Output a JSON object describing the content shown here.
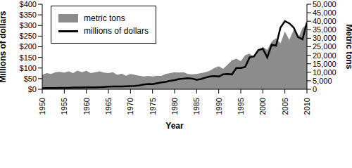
{
  "chart_data": {
    "type": "area_line",
    "x_label": "Year",
    "y_label": "Millions of dollars",
    "y2_label": "Metric tons",
    "x": [
      1950,
      1951,
      1952,
      1953,
      1954,
      1955,
      1956,
      1957,
      1958,
      1959,
      1960,
      1961,
      1962,
      1963,
      1964,
      1965,
      1966,
      1967,
      1968,
      1969,
      1970,
      1971,
      1972,
      1973,
      1974,
      1975,
      1976,
      1977,
      1978,
      1979,
      1980,
      1981,
      1982,
      1983,
      1984,
      1985,
      1986,
      1987,
      1988,
      1989,
      1990,
      1991,
      1992,
      1993,
      1994,
      1995,
      1996,
      1997,
      1998,
      1999,
      2000,
      2001,
      2002,
      2003,
      2004,
      2005,
      2006,
      2007,
      2008,
      2009,
      2010
    ],
    "series": [
      {
        "name": "metric tons",
        "type": "area",
        "axis": "y2",
        "color": "#8c8c8c",
        "values": [
          8500,
          9500,
          9000,
          10000,
          10200,
          9800,
          10500,
          9500,
          11000,
          10000,
          10800,
          9500,
          10000,
          10500,
          9800,
          9500,
          10000,
          8500,
          9200,
          8000,
          9000,
          8500,
          8000,
          7500,
          7800,
          7500,
          8000,
          7800,
          9000,
          9500,
          10000,
          9800,
          10000,
          9000,
          8800,
          9000,
          9500,
          10000,
          11000,
          12500,
          13500,
          12000,
          14500,
          17000,
          18000,
          16500,
          20000,
          21000,
          19000,
          23000,
          25000,
          23000,
          28000,
          30000,
          27000,
          34000,
          29000,
          35000,
          30000,
          36000,
          38500
        ]
      },
      {
        "name": "millions of dollars",
        "type": "line",
        "axis": "y",
        "color": "#000000",
        "values": [
          5,
          6,
          6,
          6,
          7,
          7,
          7,
          8,
          8,
          8,
          9,
          9,
          9,
          10,
          11,
          12,
          13,
          13,
          13,
          14,
          15,
          16,
          18,
          22,
          25,
          24,
          28,
          32,
          35,
          40,
          43,
          48,
          50,
          52,
          50,
          45,
          48,
          55,
          60,
          62,
          60,
          70,
          72,
          70,
          100,
          100,
          105,
          150,
          155,
          185,
          190,
          150,
          210,
          205,
          290,
          320,
          310,
          290,
          245,
          235,
          315
        ]
      }
    ],
    "xlim": [
      1950,
      2010
    ],
    "xticks": [
      1950,
      1955,
      1960,
      1965,
      1970,
      1975,
      1980,
      1985,
      1990,
      1995,
      2000,
      2005,
      2010
    ],
    "ylim": [
      0,
      400
    ],
    "yticks": [
      {
        "value": 0,
        "label": "$0"
      },
      {
        "value": 50,
        "label": "$50"
      },
      {
        "value": 100,
        "label": "$100"
      },
      {
        "value": 150,
        "label": "$150"
      },
      {
        "value": 200,
        "label": "$200"
      },
      {
        "value": 250,
        "label": "$250"
      },
      {
        "value": 300,
        "label": "$300"
      },
      {
        "value": 350,
        "label": "$350"
      },
      {
        "value": 400,
        "label": "$400"
      }
    ],
    "y2lim": [
      0,
      50000
    ],
    "y2ticks": [
      0,
      {
        "value": 5000,
        "label": "5,000"
      },
      {
        "value": 10000,
        "label": "10,000"
      },
      {
        "value": 15000,
        "label": "15,000"
      },
      {
        "value": 20000,
        "label": "20,000"
      },
      {
        "value": 25000,
        "label": "25,000"
      },
      {
        "value": 30000,
        "label": "30,000"
      },
      {
        "value": 35000,
        "label": "35,000"
      },
      {
        "value": 40000,
        "label": "40,000"
      },
      {
        "value": 45000,
        "label": "45,000"
      },
      {
        "value": 50000,
        "label": "50,000"
      }
    ],
    "legend": "upper left",
    "grid": false
  }
}
